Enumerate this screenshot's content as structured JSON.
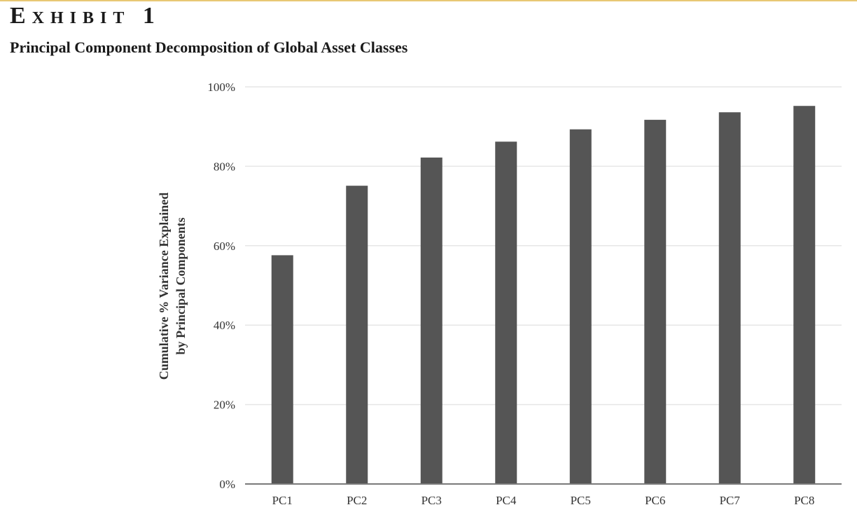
{
  "exhibit": {
    "label": "Exhibit 1",
    "title": "Principal Component Decomposition of Global Asset Classes"
  },
  "colors": {
    "bar": "#555555",
    "grid": "#e6e6e6",
    "axis": "#7a7a7a",
    "text": "#333333",
    "accent_rule": "#e8c874"
  },
  "chart_data": {
    "type": "bar",
    "title": "Principal Component Decomposition of Global Asset Classes",
    "xlabel": "",
    "ylabel_lines": [
      "Cumulative % Variance Explained",
      "by Principal Components"
    ],
    "categories": [
      "PC1",
      "PC2",
      "PC3",
      "PC4",
      "PC5",
      "PC6",
      "PC7",
      "PC8"
    ],
    "values": [
      57.6,
      75.1,
      82.2,
      86.2,
      89.3,
      91.7,
      93.6,
      95.2
    ],
    "unit": "%",
    "ylim": [
      0,
      100
    ],
    "yticks": [
      "0%",
      "20%",
      "40%",
      "60%",
      "80%",
      "100%"
    ],
    "ytick_values": [
      0,
      20,
      40,
      60,
      80,
      100
    ],
    "grid": true,
    "legend": "none"
  }
}
